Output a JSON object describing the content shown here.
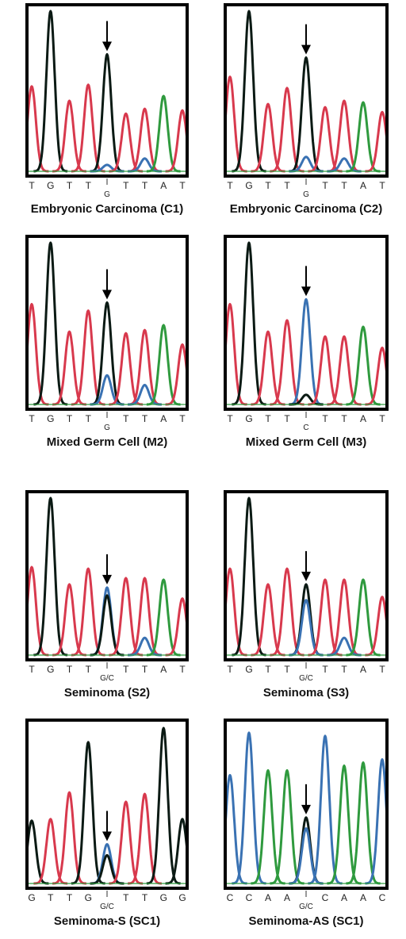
{
  "section_letters": [
    "",
    ""
  ],
  "colors": {
    "G": "#0b1a14",
    "T": "#d8394d",
    "A": "#2f9a3e",
    "C": "#3a72b3"
  },
  "panels": [
    {
      "caption": "Embryonic Carcinoma (C1)",
      "bases": [
        "T",
        "G",
        "T",
        "T",
        "",
        "T",
        "T",
        "A",
        "T"
      ],
      "call": "G",
      "call_index": 4,
      "peaks": [
        [
          [
            "T",
            0.53
          ]
        ],
        [
          [
            "G",
            1.0
          ]
        ],
        [
          [
            "T",
            0.44
          ]
        ],
        [
          [
            "T",
            0.54
          ]
        ],
        [
          [
            "G",
            0.73
          ],
          [
            "C",
            0.04
          ]
        ],
        [
          [
            "T",
            0.36
          ]
        ],
        [
          [
            "T",
            0.39
          ],
          [
            "C",
            0.08
          ]
        ],
        [
          [
            "A",
            0.47
          ]
        ],
        [
          [
            "T",
            0.38
          ]
        ]
      ],
      "arrow_index": 4
    },
    {
      "caption": "Embryonic Carcinoma (C2)",
      "bases": [
        "T",
        "G",
        "T",
        "T",
        "",
        "T",
        "T",
        "A",
        "T"
      ],
      "call": "G",
      "call_index": 4,
      "peaks": [
        [
          [
            "T",
            0.59
          ]
        ],
        [
          [
            "G",
            1.0
          ]
        ],
        [
          [
            "T",
            0.42
          ]
        ],
        [
          [
            "T",
            0.52
          ]
        ],
        [
          [
            "G",
            0.71
          ],
          [
            "C",
            0.09
          ]
        ],
        [
          [
            "T",
            0.4
          ]
        ],
        [
          [
            "T",
            0.44
          ],
          [
            "C",
            0.08
          ]
        ],
        [
          [
            "A",
            0.43
          ]
        ],
        [
          [
            "T",
            0.37
          ]
        ]
      ],
      "arrow_index": 4
    },
    {
      "caption": "Mixed Germ Cell (M2)",
      "bases": [
        "T",
        "G",
        "T",
        "T",
        "",
        "T",
        "T",
        "A",
        "T"
      ],
      "call": "G",
      "call_index": 4,
      "peaks": [
        [
          [
            "T",
            0.62
          ]
        ],
        [
          [
            "G",
            1.0
          ]
        ],
        [
          [
            "T",
            0.45
          ]
        ],
        [
          [
            "T",
            0.58
          ]
        ],
        [
          [
            "G",
            0.63
          ],
          [
            "C",
            0.18
          ]
        ],
        [
          [
            "T",
            0.44
          ]
        ],
        [
          [
            "T",
            0.46
          ],
          [
            "C",
            0.12
          ]
        ],
        [
          [
            "A",
            0.49
          ]
        ],
        [
          [
            "T",
            0.37
          ]
        ]
      ],
      "arrow_index": 4
    },
    {
      "caption": "Mixed Germ Cell (M3)",
      "bases": [
        "T",
        "G",
        "T",
        "T",
        "",
        "T",
        "T",
        "A",
        "T"
      ],
      "call": "C",
      "call_index": 4,
      "peaks": [
        [
          [
            "T",
            0.62
          ]
        ],
        [
          [
            "G",
            1.0
          ]
        ],
        [
          [
            "T",
            0.45
          ]
        ],
        [
          [
            "T",
            0.52
          ]
        ],
        [
          [
            "C",
            0.65
          ],
          [
            "G",
            0.06
          ]
        ],
        [
          [
            "T",
            0.42
          ]
        ],
        [
          [
            "T",
            0.42
          ]
        ],
        [
          [
            "A",
            0.48
          ]
        ],
        [
          [
            "T",
            0.35
          ]
        ]
      ],
      "arrow_index": 4
    },
    {
      "caption": "Seminoma (S2)",
      "bases": [
        "T",
        "G",
        "T",
        "T",
        "",
        "T",
        "T",
        "A",
        "T"
      ],
      "call": "G/C",
      "call_index": 4,
      "peaks": [
        [
          [
            "T",
            0.56
          ]
        ],
        [
          [
            "G",
            1.0
          ]
        ],
        [
          [
            "T",
            0.45
          ]
        ],
        [
          [
            "T",
            0.55
          ]
        ],
        [
          [
            "C",
            0.43
          ],
          [
            "G",
            0.38
          ]
        ],
        [
          [
            "T",
            0.49
          ]
        ],
        [
          [
            "T",
            0.49
          ],
          [
            "C",
            0.11
          ]
        ],
        [
          [
            "A",
            0.48
          ]
        ],
        [
          [
            "T",
            0.36
          ]
        ]
      ],
      "arrow_index": 4
    },
    {
      "caption": "Seminoma (S3)",
      "bases": [
        "T",
        "G",
        "T",
        "T",
        "",
        "T",
        "T",
        "A",
        "T"
      ],
      "call": "G/C",
      "call_index": 4,
      "peaks": [
        [
          [
            "T",
            0.55
          ]
        ],
        [
          [
            "G",
            1.0
          ]
        ],
        [
          [
            "T",
            0.45
          ]
        ],
        [
          [
            "T",
            0.55
          ]
        ],
        [
          [
            "G",
            0.45
          ],
          [
            "C",
            0.35
          ]
        ],
        [
          [
            "T",
            0.48
          ]
        ],
        [
          [
            "T",
            0.48
          ],
          [
            "C",
            0.11
          ]
        ],
        [
          [
            "A",
            0.48
          ]
        ],
        [
          [
            "T",
            0.37
          ]
        ]
      ],
      "arrow_index": 4
    },
    {
      "caption": "Seminoma-S (SC1)",
      "bases": [
        "G",
        "T",
        "T",
        "G",
        "",
        "T",
        "T",
        "G",
        "G"
      ],
      "call": "G/C",
      "call_index": 4,
      "peaks": [
        [
          [
            "G",
            0.4
          ]
        ],
        [
          [
            "T",
            0.41
          ]
        ],
        [
          [
            "T",
            0.58
          ]
        ],
        [
          [
            "G",
            0.9
          ]
        ],
        [
          [
            "C",
            0.25
          ],
          [
            "G",
            0.18
          ]
        ],
        [
          [
            "T",
            0.52
          ]
        ],
        [
          [
            "T",
            0.57
          ]
        ],
        [
          [
            "G",
            0.99
          ]
        ],
        [
          [
            "G",
            0.41
          ]
        ]
      ],
      "arrow_index": 4
    },
    {
      "caption": "Seminoma-AS (SC1)",
      "bases": [
        "C",
        "C",
        "A",
        "A",
        "",
        "C",
        "A",
        "A",
        "C"
      ],
      "call": "G/C",
      "call_index": 4,
      "peaks": [
        [
          [
            "C",
            0.69
          ]
        ],
        [
          [
            "C",
            0.96
          ]
        ],
        [
          [
            "A",
            0.72
          ]
        ],
        [
          [
            "A",
            0.72
          ]
        ],
        [
          [
            "G",
            0.42
          ],
          [
            "C",
            0.35
          ]
        ],
        [
          [
            "C",
            0.94
          ]
        ],
        [
          [
            "A",
            0.75
          ]
        ],
        [
          [
            "A",
            0.77
          ]
        ],
        [
          [
            "C",
            0.79
          ]
        ]
      ],
      "arrow_index": 4
    }
  ]
}
